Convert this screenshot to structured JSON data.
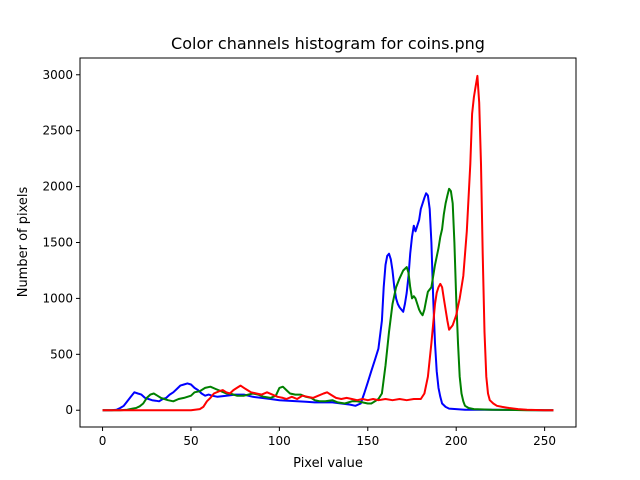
{
  "chart_data": {
    "type": "line",
    "title": "Color channels histogram for coins.png",
    "xlabel": "Pixel value",
    "ylabel": "Number of pixels",
    "xlim": [
      -12.75,
      267.75
    ],
    "ylim": [
      -150,
      3150
    ],
    "xticks": [
      0,
      50,
      100,
      150,
      200,
      250
    ],
    "yticks": [
      0,
      500,
      1000,
      1500,
      2000,
      2500,
      3000
    ],
    "grid": false,
    "legend": "none",
    "series": [
      {
        "color": "#0000ff",
        "points": [
          [
            0,
            0
          ],
          [
            5,
            0
          ],
          [
            8,
            5
          ],
          [
            10,
            20
          ],
          [
            12,
            40
          ],
          [
            14,
            80
          ],
          [
            16,
            120
          ],
          [
            18,
            160
          ],
          [
            20,
            150
          ],
          [
            22,
            140
          ],
          [
            24,
            110
          ],
          [
            26,
            100
          ],
          [
            28,
            90
          ],
          [
            30,
            85
          ],
          [
            32,
            80
          ],
          [
            34,
            100
          ],
          [
            36,
            110
          ],
          [
            38,
            140
          ],
          [
            40,
            160
          ],
          [
            42,
            190
          ],
          [
            44,
            220
          ],
          [
            46,
            230
          ],
          [
            48,
            240
          ],
          [
            50,
            230
          ],
          [
            52,
            200
          ],
          [
            54,
            180
          ],
          [
            56,
            150
          ],
          [
            58,
            130
          ],
          [
            60,
            140
          ],
          [
            62,
            130
          ],
          [
            65,
            120
          ],
          [
            70,
            130
          ],
          [
            75,
            140
          ],
          [
            80,
            140
          ],
          [
            85,
            120
          ],
          [
            90,
            110
          ],
          [
            95,
            100
          ],
          [
            100,
            90
          ],
          [
            105,
            85
          ],
          [
            110,
            80
          ],
          [
            115,
            75
          ],
          [
            120,
            70
          ],
          [
            125,
            70
          ],
          [
            130,
            70
          ],
          [
            135,
            60
          ],
          [
            140,
            50
          ],
          [
            143,
            40
          ],
          [
            146,
            60
          ],
          [
            148,
            150
          ],
          [
            150,
            250
          ],
          [
            152,
            350
          ],
          [
            154,
            450
          ],
          [
            156,
            550
          ],
          [
            158,
            800
          ],
          [
            159,
            1100
          ],
          [
            160,
            1300
          ],
          [
            161,
            1380
          ],
          [
            162,
            1400
          ],
          [
            163,
            1350
          ],
          [
            164,
            1250
          ],
          [
            165,
            1100
          ],
          [
            166,
            1000
          ],
          [
            167,
            950
          ],
          [
            168,
            920
          ],
          [
            169,
            900
          ],
          [
            170,
            880
          ],
          [
            171,
            950
          ],
          [
            172,
            1050
          ],
          [
            173,
            1200
          ],
          [
            174,
            1400
          ],
          [
            175,
            1550
          ],
          [
            176,
            1650
          ],
          [
            177,
            1600
          ],
          [
            178,
            1650
          ],
          [
            179,
            1700
          ],
          [
            180,
            1800
          ],
          [
            181,
            1850
          ],
          [
            182,
            1900
          ],
          [
            183,
            1940
          ],
          [
            184,
            1920
          ],
          [
            185,
            1800
          ],
          [
            186,
            1500
          ],
          [
            187,
            1000
          ],
          [
            188,
            600
          ],
          [
            189,
            350
          ],
          [
            190,
            200
          ],
          [
            191,
            120
          ],
          [
            192,
            60
          ],
          [
            194,
            30
          ],
          [
            196,
            15
          ],
          [
            200,
            10
          ],
          [
            205,
            5
          ],
          [
            210,
            5
          ],
          [
            215,
            5
          ],
          [
            220,
            5
          ],
          [
            230,
            3
          ],
          [
            240,
            2
          ],
          [
            250,
            0
          ],
          [
            255,
            0
          ]
        ]
      },
      {
        "color": "#008000",
        "points": [
          [
            0,
            0
          ],
          [
            10,
            0
          ],
          [
            14,
            5
          ],
          [
            17,
            15
          ],
          [
            19,
            20
          ],
          [
            21,
            35
          ],
          [
            23,
            60
          ],
          [
            25,
            110
          ],
          [
            27,
            140
          ],
          [
            29,
            150
          ],
          [
            31,
            130
          ],
          [
            33,
            110
          ],
          [
            35,
            100
          ],
          [
            37,
            90
          ],
          [
            40,
            80
          ],
          [
            43,
            100
          ],
          [
            46,
            110
          ],
          [
            50,
            130
          ],
          [
            52,
            160
          ],
          [
            55,
            170
          ],
          [
            58,
            200
          ],
          [
            61,
            210
          ],
          [
            64,
            190
          ],
          [
            67,
            170
          ],
          [
            70,
            150
          ],
          [
            73,
            145
          ],
          [
            76,
            130
          ],
          [
            80,
            130
          ],
          [
            85,
            150
          ],
          [
            88,
            140
          ],
          [
            91,
            120
          ],
          [
            95,
            110
          ],
          [
            98,
            130
          ],
          [
            100,
            200
          ],
          [
            102,
            210
          ],
          [
            104,
            180
          ],
          [
            106,
            150
          ],
          [
            109,
            140
          ],
          [
            112,
            140
          ],
          [
            115,
            120
          ],
          [
            118,
            110
          ],
          [
            120,
            90
          ],
          [
            123,
            80
          ],
          [
            126,
            80
          ],
          [
            130,
            90
          ],
          [
            133,
            70
          ],
          [
            137,
            60
          ],
          [
            141,
            80
          ],
          [
            144,
            80
          ],
          [
            147,
            70
          ],
          [
            150,
            60
          ],
          [
            152,
            60
          ],
          [
            154,
            80
          ],
          [
            156,
            100
          ],
          [
            158,
            150
          ],
          [
            160,
            400
          ],
          [
            162,
            700
          ],
          [
            164,
            950
          ],
          [
            166,
            1100
          ],
          [
            168,
            1180
          ],
          [
            170,
            1250
          ],
          [
            172,
            1280
          ],
          [
            173,
            1230
          ],
          [
            174,
            1100
          ],
          [
            175,
            1000
          ],
          [
            176,
            1020
          ],
          [
            177,
            1000
          ],
          [
            178,
            950
          ],
          [
            179,
            900
          ],
          [
            180,
            870
          ],
          [
            181,
            850
          ],
          [
            182,
            900
          ],
          [
            183,
            980
          ],
          [
            184,
            1060
          ],
          [
            186,
            1100
          ],
          [
            188,
            1300
          ],
          [
            190,
            1450
          ],
          [
            191,
            1550
          ],
          [
            192,
            1620
          ],
          [
            193,
            1750
          ],
          [
            194,
            1850
          ],
          [
            195,
            1920
          ],
          [
            196,
            1980
          ],
          [
            197,
            1960
          ],
          [
            198,
            1850
          ],
          [
            199,
            1500
          ],
          [
            200,
            1000
          ],
          [
            201,
            600
          ],
          [
            202,
            300
          ],
          [
            203,
            150
          ],
          [
            204,
            80
          ],
          [
            205,
            40
          ],
          [
            207,
            20
          ],
          [
            210,
            10
          ],
          [
            220,
            5
          ],
          [
            230,
            3
          ],
          [
            240,
            0
          ],
          [
            255,
            0
          ]
        ]
      },
      {
        "color": "#ff0000",
        "points": [
          [
            0,
            0
          ],
          [
            30,
            0
          ],
          [
            40,
            0
          ],
          [
            50,
            0
          ],
          [
            55,
            10
          ],
          [
            57,
            30
          ],
          [
            59,
            80
          ],
          [
            61,
            110
          ],
          [
            63,
            150
          ],
          [
            66,
            170
          ],
          [
            68,
            180
          ],
          [
            70,
            160
          ],
          [
            72,
            150
          ],
          [
            74,
            180
          ],
          [
            76,
            200
          ],
          [
            78,
            220
          ],
          [
            80,
            200
          ],
          [
            82,
            180
          ],
          [
            84,
            160
          ],
          [
            87,
            150
          ],
          [
            90,
            140
          ],
          [
            93,
            160
          ],
          [
            96,
            140
          ],
          [
            99,
            120
          ],
          [
            102,
            110
          ],
          [
            104,
            100
          ],
          [
            107,
            120
          ],
          [
            110,
            100
          ],
          [
            113,
            130
          ],
          [
            116,
            120
          ],
          [
            119,
            110
          ],
          [
            122,
            130
          ],
          [
            125,
            150
          ],
          [
            127,
            160
          ],
          [
            129,
            140
          ],
          [
            132,
            110
          ],
          [
            135,
            100
          ],
          [
            138,
            110
          ],
          [
            141,
            100
          ],
          [
            144,
            90
          ],
          [
            147,
            100
          ],
          [
            150,
            90
          ],
          [
            153,
            100
          ],
          [
            156,
            90
          ],
          [
            160,
            100
          ],
          [
            164,
            90
          ],
          [
            168,
            100
          ],
          [
            172,
            90
          ],
          [
            176,
            100
          ],
          [
            180,
            100
          ],
          [
            182,
            150
          ],
          [
            184,
            300
          ],
          [
            186,
            600
          ],
          [
            188,
            950
          ],
          [
            189,
            1050
          ],
          [
            190,
            1100
          ],
          [
            191,
            1130
          ],
          [
            192,
            1100
          ],
          [
            193,
            1000
          ],
          [
            194,
            900
          ],
          [
            195,
            800
          ],
          [
            196,
            720
          ],
          [
            197,
            740
          ],
          [
            198,
            760
          ],
          [
            200,
            850
          ],
          [
            202,
            1000
          ],
          [
            204,
            1200
          ],
          [
            206,
            1600
          ],
          [
            208,
            2200
          ],
          [
            209,
            2650
          ],
          [
            210,
            2800
          ],
          [
            211,
            2900
          ],
          [
            212,
            2990
          ],
          [
            213,
            2750
          ],
          [
            214,
            2200
          ],
          [
            215,
            1400
          ],
          [
            216,
            700
          ],
          [
            217,
            300
          ],
          [
            218,
            150
          ],
          [
            219,
            90
          ],
          [
            221,
            60
          ],
          [
            223,
            40
          ],
          [
            226,
            30
          ],
          [
            230,
            20
          ],
          [
            235,
            10
          ],
          [
            240,
            5
          ],
          [
            250,
            0
          ],
          [
            255,
            0
          ]
        ]
      }
    ]
  }
}
